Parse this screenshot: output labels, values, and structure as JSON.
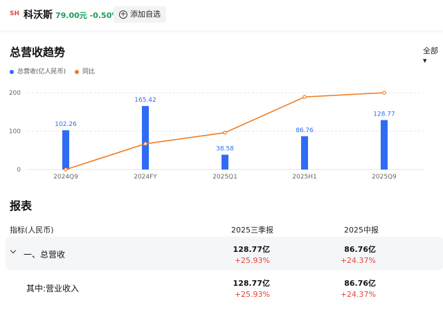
{
  "header": {
    "badge": "SH",
    "name": "科沃斯",
    "price": "79.00元",
    "change": "-0.50%",
    "add_label": "添加自选"
  },
  "trend": {
    "title": "总营收趋势",
    "filter": "全部"
  },
  "chart_data": {
    "type": "bar",
    "title": "总营收趋势",
    "categories": [
      "2024Q9",
      "2024FY",
      "2025Q1",
      "2025H1",
      "2025Q9"
    ],
    "series": [
      {
        "name": "总营收(亿人民币)",
        "kind": "bar",
        "color": "#2f6bf5",
        "values": [
          102.26,
          165.42,
          38.58,
          86.76,
          128.77
        ]
      },
      {
        "name": "同比",
        "kind": "line",
        "color": "#f07b22",
        "values": [
          0,
          67,
          96,
          189,
          200
        ]
      }
    ],
    "yticks": [
      0,
      100,
      200
    ],
    "ylim": [
      0,
      200
    ],
    "bar_labels": [
      "102.26",
      "165.42",
      "38.58",
      "86.76",
      "128.77"
    ]
  },
  "report": {
    "title": "报表",
    "col_label": "指标(人民币)",
    "col1": "2025三季报",
    "col2": "2025中报",
    "rows": [
      {
        "label": "一、总营收",
        "v1": "128.77亿",
        "p1": "+25.93%",
        "v2": "86.76亿",
        "p2": "+24.37%"
      },
      {
        "label": "其中:营业收入",
        "v1": "128.77亿",
        "p1": "+25.93%",
        "v2": "86.76亿",
        "p2": "+24.37%"
      }
    ]
  },
  "colors": {
    "bar": "#2f6bf5",
    "line": "#f07b22",
    "up": "#e2463d",
    "down": "#1a9a5a"
  }
}
